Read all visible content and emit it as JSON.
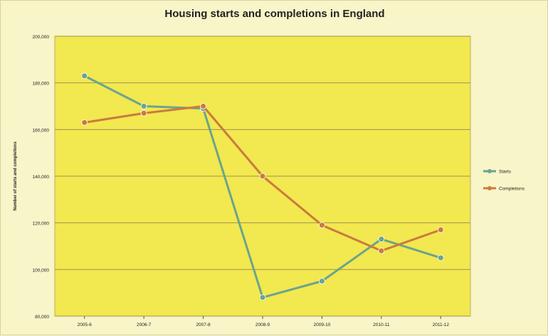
{
  "chart_data": {
    "type": "line",
    "title": "Housing starts and completions in England",
    "xlabel": "",
    "ylabel": "Number of starts and completions",
    "categories": [
      "2005-6",
      "2006-7",
      "2007-8",
      "2008-9",
      "2009-10",
      "2010-11",
      "2011-12"
    ],
    "ylim": [
      80000,
      200000
    ],
    "yticks": [
      "80,000",
      "100,000",
      "120,000",
      "140,000",
      "160,000",
      "180,000",
      "200,000"
    ],
    "yticks_values": [
      80000,
      100000,
      120000,
      140000,
      160000,
      180000,
      200000
    ],
    "grid": true,
    "legend_position": "right",
    "plot_color": "#f2e84f",
    "series": [
      {
        "name": "Starts",
        "color": "#6aa58c",
        "values": [
          183000,
          170000,
          169000,
          88000,
          95000,
          113000,
          105000
        ]
      },
      {
        "name": "Completions",
        "color": "#cc7a3e",
        "values": [
          163000,
          167000,
          170000,
          140000,
          119000,
          108000,
          117000
        ]
      }
    ]
  }
}
